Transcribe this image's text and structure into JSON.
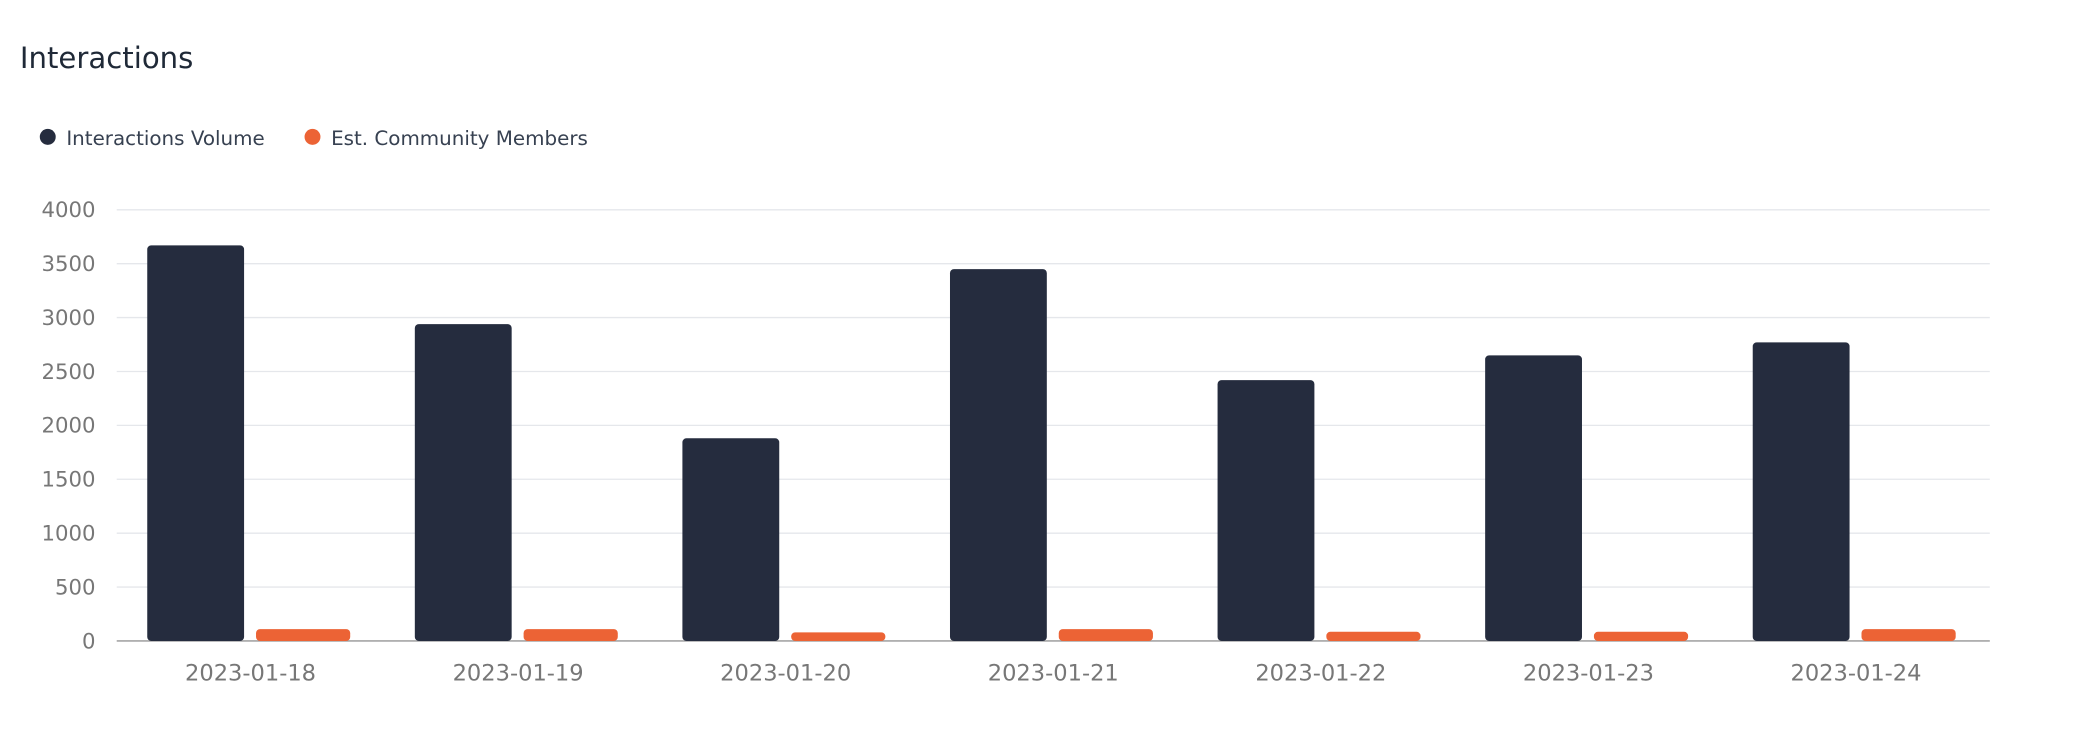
{
  "chart_data": {
    "type": "bar",
    "title": "Interactions",
    "categories": [
      "2023-01-18",
      "2023-01-19",
      "2023-01-20",
      "2023-01-21",
      "2023-01-22",
      "2023-01-23",
      "2023-01-24"
    ],
    "series": [
      {
        "name": "Interactions Volume",
        "color": "#252c3e",
        "values": [
          3670,
          2940,
          1880,
          3450,
          2420,
          2650,
          2770
        ]
      },
      {
        "name": "Est. Community Members",
        "color": "#ec6335",
        "values": [
          110,
          110,
          80,
          110,
          85,
          85,
          110
        ]
      }
    ],
    "ylim": [
      0,
      4000
    ],
    "yticks": [
      0,
      500,
      1000,
      1500,
      2000,
      2500,
      3000,
      3500,
      4000
    ],
    "grid": true
  }
}
